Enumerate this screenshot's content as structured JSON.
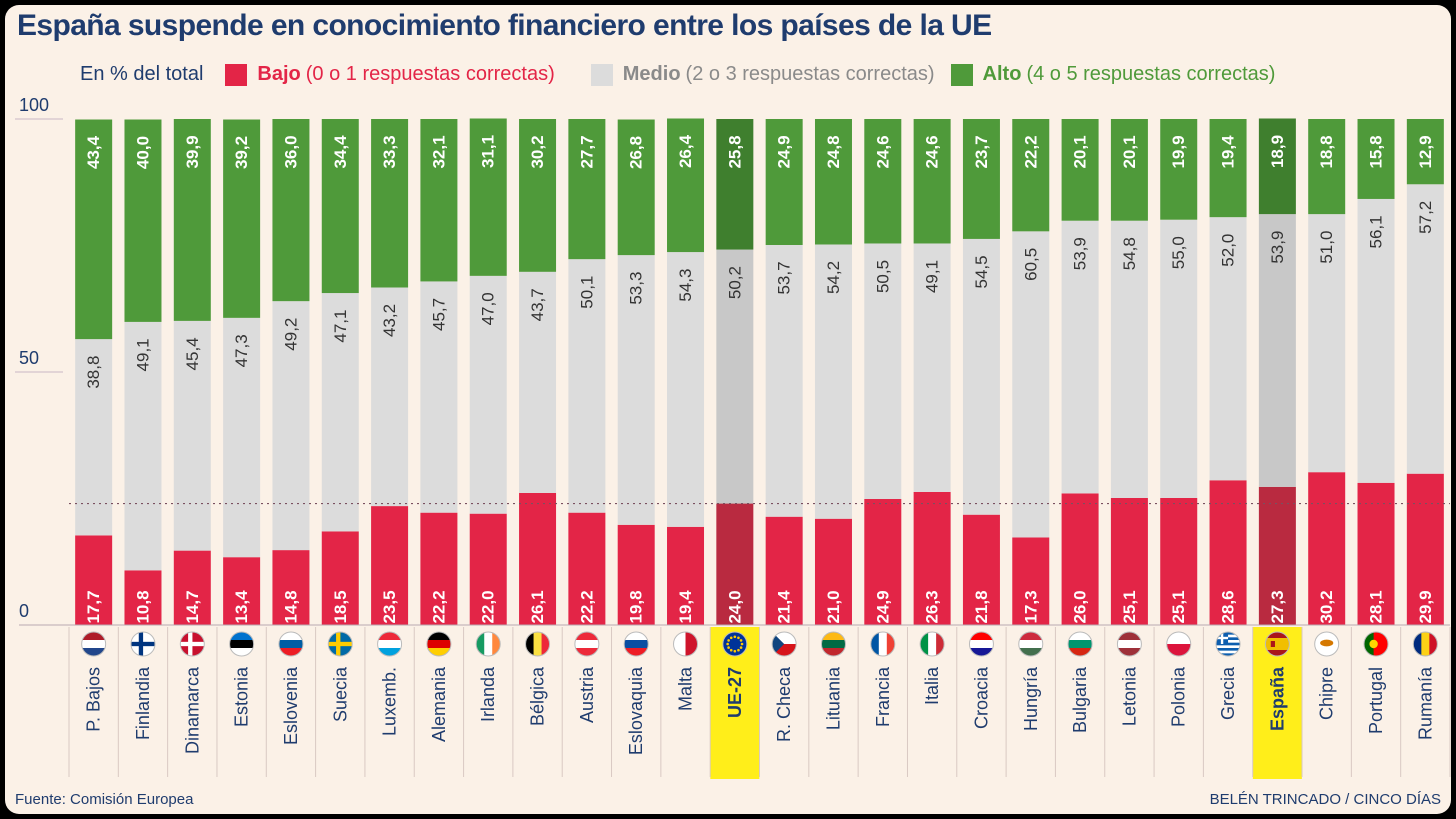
{
  "title": "España suspende en conocimiento financiero entre los países de la UE",
  "legend": {
    "unit_label": "En % del total",
    "items": [
      {
        "bold": "Bajo",
        "text": "(0 o 1 respuestas correctas)",
        "color": "#e32547"
      },
      {
        "bold": "Medio",
        "text": "(2 o 3 respuestas correctas)",
        "color": "#dcdcdc"
      },
      {
        "bold": "Alto",
        "text": "(4 o 5 respuestas correctas)",
        "color": "#4f9a3a"
      }
    ]
  },
  "source": "Fuente: Comisión Europea",
  "credit": "BELÉN TRINCADO / CINCO DÍAS",
  "colors": {
    "bajo": "#e32547",
    "medio": "#dcdcdc",
    "alto": "#4f9a3a",
    "bajo_hl": "#b92a40",
    "medio_hl": "#c8c8c8",
    "alto_hl": "#3f7f2e",
    "highlight_label": "#ffee1a",
    "axis_text": "#1f3c6e"
  },
  "chart_data": {
    "type": "bar",
    "stacked": true,
    "ylim": [
      0,
      100
    ],
    "yticks": [
      "0",
      "50",
      "100"
    ],
    "reference_line": {
      "series": "Bajo",
      "value": 24.0,
      "style": "dotted"
    },
    "highlighted": [
      "UE-27",
      "España"
    ],
    "categories": [
      "P. Bajos",
      "Finlandia",
      "Dinamarca",
      "Estonia",
      "Eslovenia",
      "Suecia",
      "Luxemb.",
      "Alemania",
      "Irlanda",
      "Bélgica",
      "Austria",
      "Eslovaquia",
      "Malta",
      "UE-27",
      "R. Checa",
      "Lituania",
      "Francia",
      "Italia",
      "Croacia",
      "Hungría",
      "Bulgaria",
      "Letonia",
      "Polonia",
      "Grecia",
      "España",
      "Chipre",
      "Portugal",
      "Rumanía"
    ],
    "flags": [
      "nl",
      "fi",
      "dk",
      "ee",
      "si",
      "se",
      "lu",
      "de",
      "ie",
      "be",
      "at",
      "sk",
      "mt",
      "eu",
      "cz",
      "lt",
      "fr",
      "it",
      "hr",
      "hu",
      "bg",
      "lv",
      "pl",
      "gr",
      "es",
      "cy",
      "pt",
      "ro"
    ],
    "series": [
      {
        "name": "Bajo",
        "values": [
          17.7,
          10.8,
          14.7,
          13.4,
          14.8,
          18.5,
          23.5,
          22.2,
          22.0,
          26.1,
          22.2,
          19.8,
          19.4,
          24.0,
          21.4,
          21.0,
          24.9,
          26.3,
          21.8,
          17.3,
          26.0,
          25.1,
          25.1,
          28.6,
          27.3,
          30.2,
          28.1,
          29.9
        ],
        "labels": [
          "17,7",
          "10,8",
          "14,7",
          "13,4",
          "14,8",
          "18,5",
          "23,5",
          "22,2",
          "22,0",
          "26,1",
          "22,2",
          "19,8",
          "19,4",
          "24,0",
          "21,4",
          "21,0",
          "24,9",
          "26,3",
          "21,8",
          "17,3",
          "26,0",
          "25,1",
          "25,1",
          "28,6",
          "27,3",
          "30,2",
          "28,1",
          "29,9"
        ]
      },
      {
        "name": "Medio",
        "values": [
          38.8,
          49.1,
          45.4,
          47.3,
          49.2,
          47.1,
          43.2,
          45.7,
          47.0,
          43.7,
          50.1,
          53.3,
          54.3,
          50.2,
          53.7,
          54.2,
          50.5,
          49.1,
          54.5,
          60.5,
          53.9,
          54.8,
          55.0,
          52.0,
          53.9,
          51.0,
          56.1,
          57.2
        ],
        "labels": [
          "38,8",
          "49,1",
          "45,4",
          "47,3",
          "49,2",
          "47,1",
          "43,2",
          "45,7",
          "47,0",
          "43,7",
          "50,1",
          "53,3",
          "54,3",
          "50,2",
          "53,7",
          "54,2",
          "50,5",
          "49,1",
          "54,5",
          "60,5",
          "53,9",
          "54,8",
          "55,0",
          "52,0",
          "53,9",
          "51,0",
          "56,1",
          "57,2"
        ]
      },
      {
        "name": "Alto",
        "values": [
          43.4,
          40.0,
          39.9,
          39.2,
          36.0,
          34.4,
          33.3,
          32.1,
          31.1,
          30.2,
          27.7,
          26.8,
          26.4,
          25.8,
          24.9,
          24.8,
          24.6,
          24.6,
          23.7,
          22.2,
          20.1,
          20.1,
          19.9,
          19.4,
          18.9,
          18.8,
          15.8,
          12.9
        ],
        "labels": [
          "43,4",
          "40,0",
          "39,9",
          "39,2",
          "36,0",
          "34,4",
          "33,3",
          "32,1",
          "31,1",
          "30,2",
          "27,7",
          "26,8",
          "26,4",
          "25,8",
          "24,9",
          "24,8",
          "24,6",
          "24,6",
          "23,7",
          "22,2",
          "20,1",
          "20,1",
          "19,9",
          "19,4",
          "18,9",
          "18,8",
          "15,8",
          "12,9"
        ]
      }
    ]
  }
}
